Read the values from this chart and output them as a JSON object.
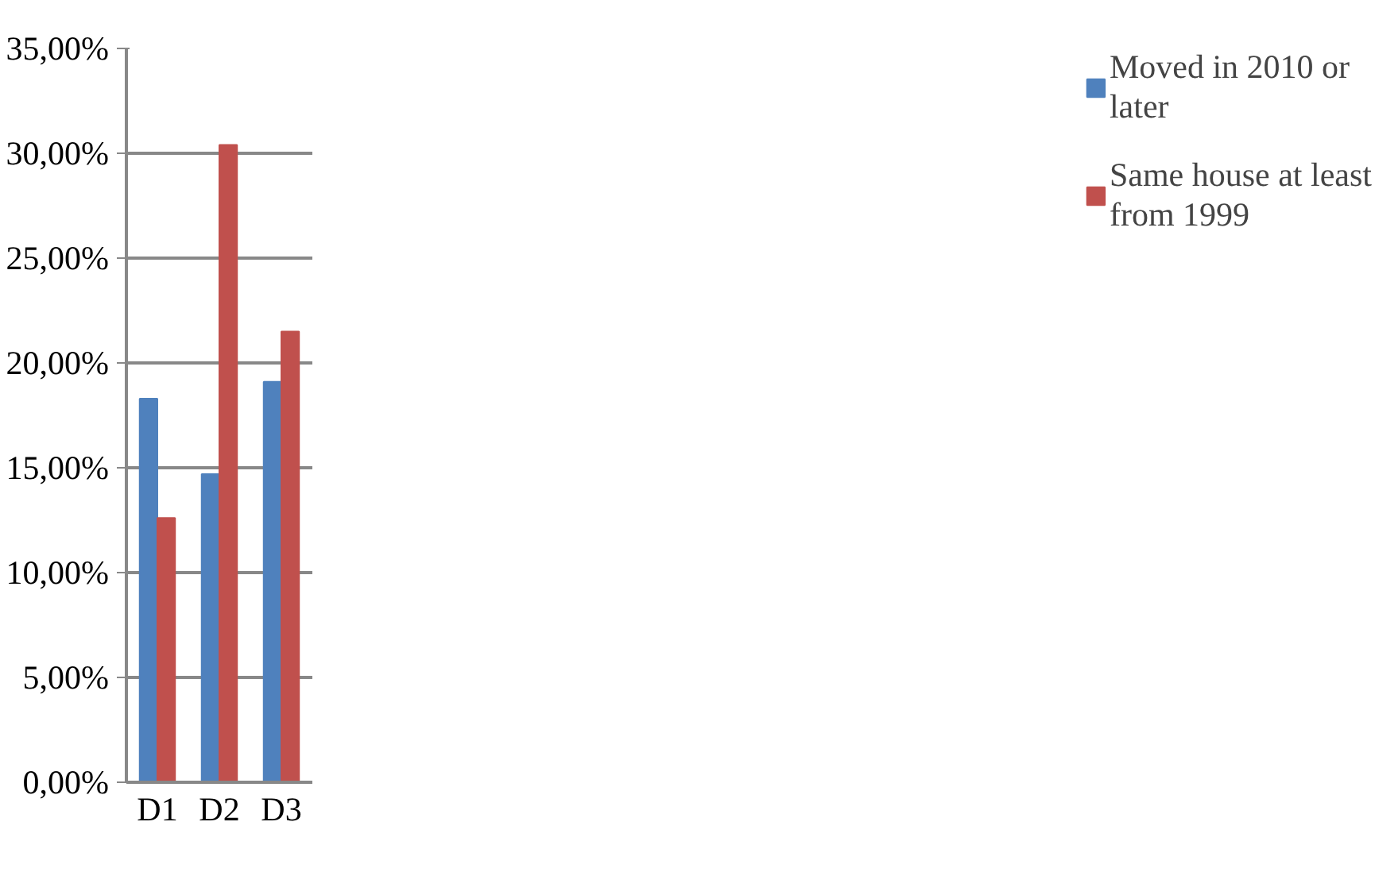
{
  "chart_data": {
    "type": "bar",
    "categories": [
      "D1",
      "D2",
      "D3"
    ],
    "series": [
      {
        "name": "Moved in 2010 or later",
        "color": "#4f81bd",
        "values": [
          18.3,
          14.7,
          19.1
        ]
      },
      {
        "name": "Same house at least from 1999",
        "color": "#c0504d",
        "values": [
          12.6,
          30.4,
          21.5
        ]
      }
    ],
    "ylim": [
      0,
      35
    ],
    "yticks": [
      {
        "value": 0,
        "label": "0,00%"
      },
      {
        "value": 5,
        "label": "5,00%"
      },
      {
        "value": 10,
        "label": "10,00%"
      },
      {
        "value": 15,
        "label": "15,00%"
      },
      {
        "value": 20,
        "label": "20,00%"
      },
      {
        "value": 25,
        "label": "25,00%"
      },
      {
        "value": 30,
        "label": "30,00%"
      },
      {
        "value": 35,
        "label": "35,00%"
      }
    ],
    "grid": "y",
    "legend": "right"
  }
}
